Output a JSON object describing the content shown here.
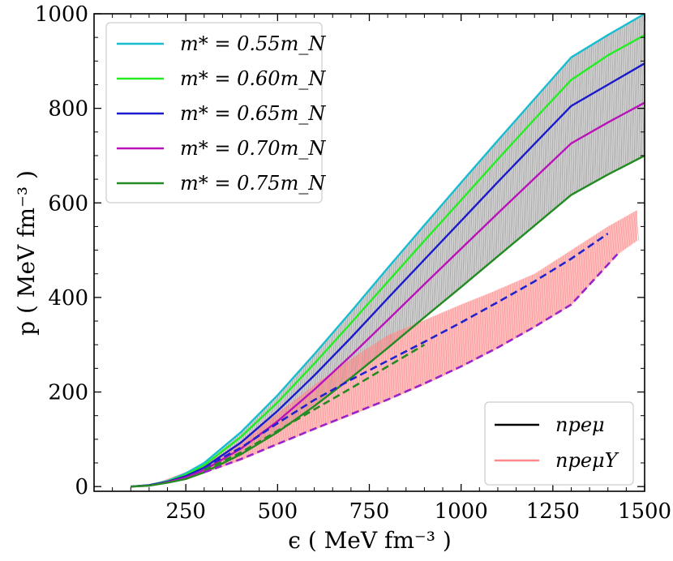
{
  "chart_data": {
    "type": "line",
    "xlabel": "ϵ ( MeV fm⁻³ )",
    "ylabel": "p ( MeV fm⁻³ )",
    "xlim": [
      0,
      1500
    ],
    "ylim": [
      -10,
      1000
    ],
    "xticks": [
      250,
      500,
      750,
      1000,
      1250,
      1500
    ],
    "yticks": [
      0,
      200,
      400,
      600,
      800,
      1000
    ],
    "xtick_labels": [
      "250",
      "500",
      "750",
      "1000",
      "1250",
      "1500"
    ],
    "ytick_labels": [
      "0",
      "200",
      "400",
      "600",
      "800",
      "1000"
    ],
    "grid": false,
    "legend_top_left": {
      "placement": "top-left",
      "entries": [
        {
          "label": "m* = 0.55m_N",
          "color": "#17becf"
        },
        {
          "label": "m* = 0.60m_N",
          "color": "#22ee22"
        },
        {
          "label": "m* = 0.65m_N",
          "color": "#1a1acc"
        },
        {
          "label": "m* = 0.70m_N",
          "color": "#bb11bb"
        },
        {
          "label": "m* = 0.75m_N",
          "color": "#228b22"
        }
      ]
    },
    "legend_bottom_right": {
      "placement": "bottom-right",
      "entries": [
        {
          "label": "npeμ",
          "color": "#000000"
        },
        {
          "label": "npeμY",
          "color": "#ff8888"
        }
      ]
    },
    "series": [
      {
        "key": "0.55",
        "color": "#17becf",
        "style": "solid",
        "x": [
          100,
          150,
          200,
          250,
          300,
          400,
          500,
          600,
          700,
          800,
          900,
          1000,
          1100,
          1200,
          1300,
          1400,
          1500
        ],
        "y": [
          0,
          3,
          12,
          28,
          50,
          115,
          193,
          280,
          370,
          462,
          553,
          643,
          732,
          820,
          908,
          955,
          1000
        ]
      },
      {
        "key": "0.60",
        "color": "#22ee22",
        "style": "solid",
        "x": [
          100,
          150,
          200,
          250,
          300,
          400,
          500,
          600,
          700,
          800,
          900,
          1000,
          1100,
          1200,
          1300,
          1400,
          1500
        ],
        "y": [
          0,
          3,
          11,
          25,
          45,
          105,
          178,
          260,
          346,
          433,
          520,
          606,
          692,
          777,
          860,
          912,
          955
        ]
      },
      {
        "key": "0.65",
        "color": "#1a1acc",
        "style": "solid",
        "x": [
          100,
          150,
          200,
          250,
          300,
          400,
          500,
          600,
          700,
          800,
          900,
          1000,
          1100,
          1200,
          1300,
          1400,
          1500
        ],
        "y": [
          0,
          3,
          10,
          22,
          40,
          93,
          160,
          235,
          315,
          398,
          480,
          562,
          644,
          725,
          805,
          850,
          895
        ]
      },
      {
        "key": "0.70",
        "color": "#bb11bb",
        "style": "solid",
        "x": [
          100,
          150,
          200,
          250,
          300,
          400,
          500,
          600,
          700,
          800,
          900,
          1000,
          1100,
          1200,
          1300,
          1400,
          1500
        ],
        "y": [
          0,
          2,
          9,
          19,
          35,
          80,
          138,
          205,
          277,
          352,
          428,
          503,
          578,
          652,
          726,
          770,
          812
        ]
      },
      {
        "key": "0.75",
        "color": "#228b22",
        "style": "solid",
        "x": [
          100,
          150,
          200,
          250,
          300,
          400,
          500,
          600,
          700,
          800,
          900,
          1000,
          1100,
          1200,
          1300,
          1400,
          1500
        ],
        "y": [
          0,
          2,
          8,
          16,
          30,
          68,
          115,
          170,
          230,
          293,
          358,
          422,
          487,
          552,
          617,
          660,
          700
        ]
      },
      {
        "key": "npemuY_hi",
        "color": "#2222cc",
        "style": "dashed",
        "x": [
          300,
          400,
          500,
          600,
          700,
          800,
          900,
          1000,
          1100,
          1200,
          1300,
          1400
        ],
        "y": [
          40,
          82,
          134,
          183,
          226,
          266,
          306,
          347,
          390,
          434,
          482,
          535
        ]
      },
      {
        "key": "npemuY_lo",
        "color": "#9922cc",
        "style": "dashed",
        "x": [
          300,
          400,
          500,
          600,
          700,
          800,
          900,
          1000,
          1100,
          1200,
          1300,
          1430
        ],
        "y": [
          30,
          58,
          90,
          122,
          153,
          184,
          218,
          254,
          294,
          338,
          385,
          495
        ]
      },
      {
        "key": "npemuY_mid",
        "color": "#228b22",
        "style": "dashed",
        "x": [
          300,
          400,
          500,
          600,
          700,
          800,
          900
        ],
        "y": [
          35,
          72,
          118,
          163,
          208,
          254,
          300
        ]
      }
    ],
    "bands": [
      {
        "key": "npemu_band",
        "color": "#888888",
        "upper_series": "0.55",
        "lower_series": "0.75"
      },
      {
        "key": "npemuY_band",
        "color": "#ff8888",
        "upper": {
          "x": [
            150,
            300,
            400,
            500,
            600,
            700,
            800,
            900,
            1000,
            1080,
            1200,
            1300,
            1400,
            1480
          ],
          "y": [
            2,
            45,
            95,
            155,
            215,
            270,
            320,
            352,
            385,
            410,
            450,
            500,
            550,
            585
          ]
        },
        "lower": {
          "x": [
            150,
            300,
            400,
            500,
            600,
            700,
            800,
            900,
            1000,
            1100,
            1200,
            1300,
            1430,
            1480
          ],
          "y": [
            0,
            28,
            55,
            88,
            120,
            150,
            182,
            215,
            252,
            292,
            336,
            383,
            493,
            520
          ]
        }
      }
    ]
  }
}
